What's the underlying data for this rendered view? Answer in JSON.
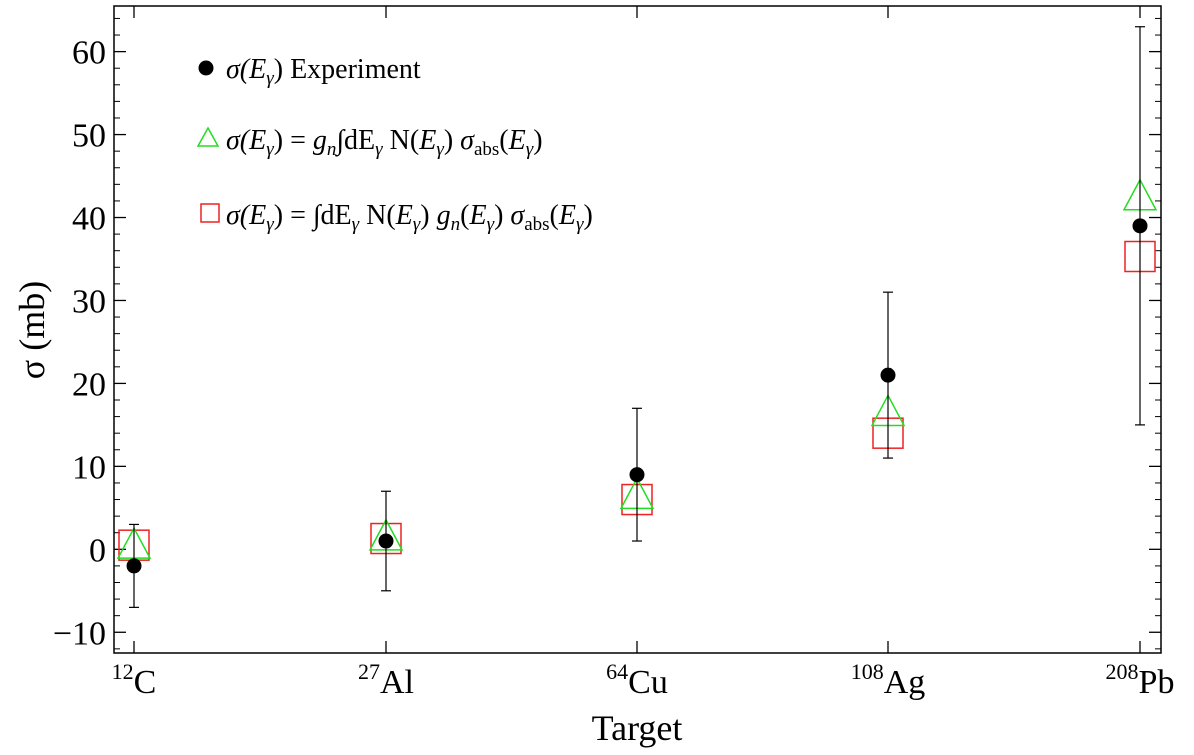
{
  "chart_data": {
    "type": "scatter",
    "title": "",
    "xlabel": "Target",
    "ylabel": "σ (mb)",
    "ylim": [
      -12.5,
      65.5
    ],
    "y_ticks": [
      -10,
      0,
      10,
      20,
      30,
      40,
      50,
      60
    ],
    "y_tick_labels": [
      "−10",
      "0",
      "10",
      "20",
      "30",
      "40",
      "50",
      "60"
    ],
    "categories": [
      {
        "mass": "12",
        "element": "C"
      },
      {
        "mass": "27",
        "element": "Al"
      },
      {
        "mass": "64",
        "element": "Cu"
      },
      {
        "mass": "108",
        "element": "Ag"
      },
      {
        "mass": "208",
        "element": "Pb"
      }
    ],
    "grid": false,
    "legend_position": "top-left",
    "series": [
      {
        "key": "experiment",
        "marker": "filled-circle",
        "color": "#000000",
        "values": [
          -2,
          1,
          9,
          21,
          39
        ],
        "error_low": [
          -7,
          -5,
          1,
          11,
          15
        ],
        "error_high": [
          3,
          7,
          17,
          31,
          63
        ]
      },
      {
        "key": "gn_constant",
        "marker": "open-triangle",
        "color": "#22dd22",
        "values": [
          0.5,
          1.5,
          6.5,
          16.5,
          42.5
        ]
      },
      {
        "key": "gn_energy_dependent",
        "marker": "open-square",
        "color": "#ee2222",
        "values": [
          0.5,
          1.3,
          6,
          14,
          35.3
        ]
      }
    ],
    "legend": [
      {
        "series": "experiment",
        "parts": [
          [
            "σ(",
            "i"
          ],
          [
            "E",
            "i"
          ],
          [
            "γ",
            "i-sub"
          ],
          [
            ")  Experiment",
            "n"
          ]
        ]
      },
      {
        "series": "gn_constant",
        "parts": [
          [
            "σ(",
            "i"
          ],
          [
            "E",
            "i"
          ],
          [
            "γ",
            "i-sub"
          ],
          [
            ") = ",
            "n"
          ],
          [
            "g",
            "i"
          ],
          [
            "n",
            "i-sub"
          ],
          [
            "∫dE",
            "n"
          ],
          [
            "γ",
            "i-sub"
          ],
          [
            " N(",
            "n"
          ],
          [
            "E",
            "i"
          ],
          [
            "γ",
            "i-sub"
          ],
          [
            ") ",
            "n"
          ],
          [
            "σ",
            "i"
          ],
          [
            "abs",
            "sub"
          ],
          [
            "(",
            "n"
          ],
          [
            "E",
            "i"
          ],
          [
            "γ",
            "i-sub"
          ],
          [
            ")",
            "n"
          ]
        ]
      },
      {
        "series": "gn_energy_dependent",
        "parts": [
          [
            "σ(",
            "i"
          ],
          [
            "E",
            "i"
          ],
          [
            "γ",
            "i-sub"
          ],
          [
            ") = ∫dE",
            "n"
          ],
          [
            "γ",
            "i-sub"
          ],
          [
            " N(",
            "n"
          ],
          [
            "E",
            "i"
          ],
          [
            "γ",
            "i-sub"
          ],
          [
            ") ",
            "n"
          ],
          [
            "g",
            "i"
          ],
          [
            "n",
            "i-sub"
          ],
          [
            "(",
            "n"
          ],
          [
            "E",
            "i"
          ],
          [
            "γ",
            "i-sub"
          ],
          [
            ") ",
            "n"
          ],
          [
            "σ",
            "i"
          ],
          [
            "abs",
            "sub"
          ],
          [
            "(",
            "n"
          ],
          [
            "E",
            "i"
          ],
          [
            "γ",
            "i-sub"
          ],
          [
            ")",
            "n"
          ]
        ]
      }
    ]
  }
}
